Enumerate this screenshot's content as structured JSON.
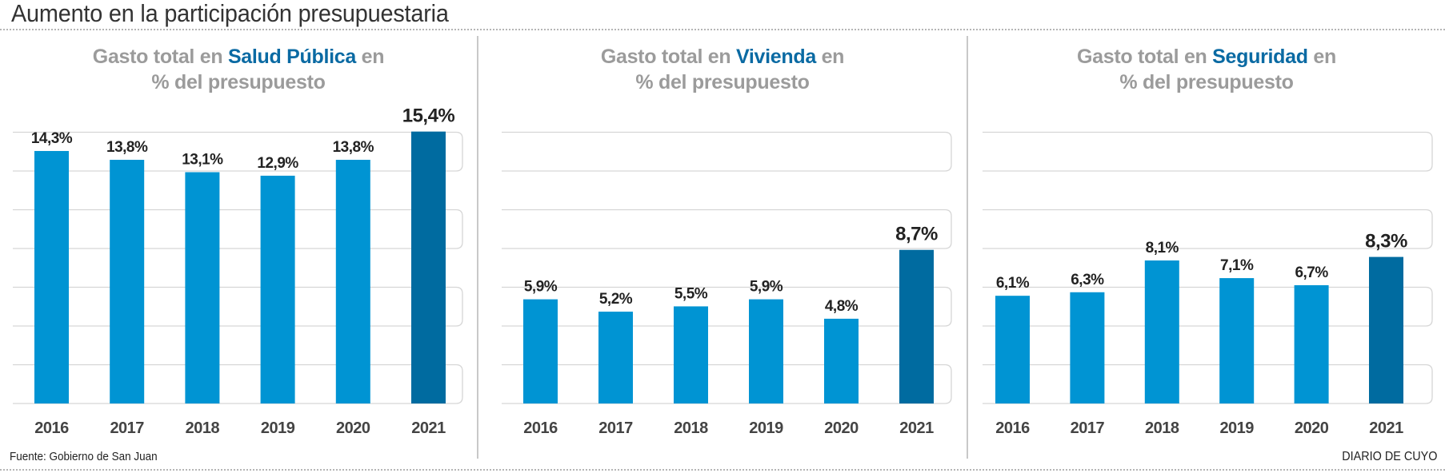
{
  "title": "Aumento en la participación presupuestaria",
  "footer": {
    "source": "Fuente: Gobierno de San Juan",
    "brand": "DIARIO DE CUYO"
  },
  "colors": {
    "bar": "#0094d3",
    "bar_highlight": "#006ba0",
    "title_gray": "#9b9b9b",
    "title_accent": "#0a6aa3",
    "label": "#222222",
    "year": "#444444",
    "grid_band": "#d6d6d6"
  },
  "chart_data": [
    {
      "type": "bar",
      "title_prefix": "Gasto total en ",
      "title_highlight": "Salud Pública",
      "title_suffix": " en",
      "title_line2": "% del presupuesto",
      "categories": [
        "2016",
        "2017",
        "2018",
        "2019",
        "2020",
        "2021"
      ],
      "values": [
        14.3,
        13.8,
        13.1,
        12.9,
        13.8,
        15.4
      ],
      "labels": [
        "14,3%",
        "13,8%",
        "13,1%",
        "12,9%",
        "13,8%",
        "15,4%"
      ],
      "highlight_index": 5,
      "xlabel": "",
      "ylabel": "",
      "ylim": [
        0,
        15.4
      ],
      "grid": "alternating bands"
    },
    {
      "type": "bar",
      "title_prefix": "Gasto total en ",
      "title_highlight": "Vivienda",
      "title_suffix": " en",
      "title_line2": "% del presupuesto",
      "categories": [
        "2016",
        "2017",
        "2018",
        "2019",
        "2020",
        "2021"
      ],
      "values": [
        5.9,
        5.2,
        5.5,
        5.9,
        4.8,
        8.7
      ],
      "labels": [
        "5,9%",
        "5,2%",
        "5,5%",
        "5,9%",
        "4,8%",
        "8,7%"
      ],
      "highlight_index": 5,
      "xlabel": "",
      "ylabel": "",
      "ylim": [
        0,
        15.4
      ],
      "grid": "alternating bands"
    },
    {
      "type": "bar",
      "title_prefix": "Gasto total en ",
      "title_highlight": "Seguridad",
      "title_suffix": " en",
      "title_line2": "% del presupuesto",
      "categories": [
        "2016",
        "2017",
        "2018",
        "2019",
        "2020",
        "2021"
      ],
      "values": [
        6.1,
        6.3,
        8.1,
        7.1,
        6.7,
        8.3
      ],
      "labels": [
        "6,1%",
        "6,3%",
        "8,1%",
        "7,1%",
        "6,7%",
        "8,3%"
      ],
      "highlight_index": 5,
      "xlabel": "",
      "ylabel": "",
      "ylim": [
        0,
        15.4
      ],
      "grid": "alternating bands"
    }
  ]
}
